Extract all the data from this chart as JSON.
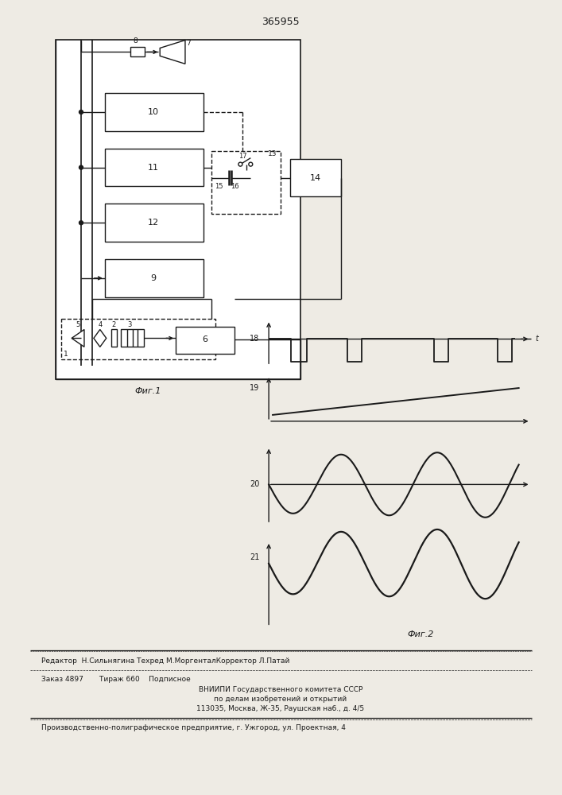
{
  "title": "365955",
  "fig_width": 7.07,
  "fig_height": 10.0,
  "bg_color": "#eeebe4",
  "line_color": "#1a1a1a",
  "footer_lines": [
    "Редактор  Н.Сильнягина Техред М.МоргенталКорректор Л.Патай",
    "Заказ 4897       Тираж 660    Подписное",
    "ВНИИПИ Государственного комитета СССР",
    "по делам изобретений и открытий",
    "113035, Москва, Ж-35, Раушская наб., д. 4/5",
    "Производственно-полиграфическое предприятие, г. Ужгород, ул. Проектная, 4"
  ]
}
